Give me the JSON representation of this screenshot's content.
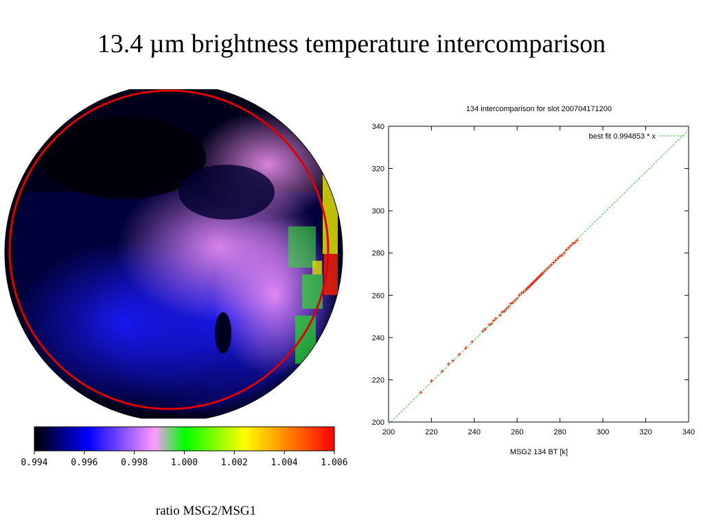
{
  "slide": {
    "title": "13.4 µm brightness temperature intercomparison",
    "caption": "ratio MSG2/MSG1"
  },
  "colorbar": {
    "ticks": [
      "0.994",
      "0.996",
      "0.998",
      "1.000",
      "1.002",
      "1.004",
      "1.006"
    ],
    "stops": [
      "#000000",
      "#0000ff",
      "#ff99ff",
      "#00ff00",
      "#ffff00",
      "#ff0000"
    ]
  },
  "colors": {
    "ring": "#e00000",
    "fit_line": "#33cc33",
    "points": "#e02000"
  },
  "chart_data": {
    "type": "scatter",
    "title": "134 intercomparison for slot 200704171200",
    "xlabel": "MSG2 134 BT [k]",
    "ylabel": "",
    "xlim": [
      200,
      340
    ],
    "ylim": [
      200,
      340
    ],
    "xticks": [
      200,
      220,
      240,
      260,
      280,
      300,
      320,
      340
    ],
    "yticks": [
      200,
      220,
      240,
      260,
      280,
      300,
      320,
      340
    ],
    "grid": false,
    "legend_position": "top-right",
    "series": [
      {
        "name": "best fit 0.994853 * x",
        "kind": "line",
        "slope": 0.994853
      }
    ],
    "points": [
      [
        215,
        214
      ],
      [
        220,
        219.5
      ],
      [
        225,
        224
      ],
      [
        228,
        227.5
      ],
      [
        230,
        229
      ],
      [
        233,
        232
      ],
      [
        236,
        235
      ],
      [
        239,
        238
      ],
      [
        244,
        243
      ],
      [
        245,
        244
      ],
      [
        247,
        246
      ],
      [
        248,
        246.5
      ],
      [
        249,
        248
      ],
      [
        250,
        249
      ],
      [
        252,
        250.5
      ],
      [
        253,
        252
      ],
      [
        254,
        252.5
      ],
      [
        255,
        253.5
      ],
      [
        256,
        254.5
      ],
      [
        257,
        256
      ],
      [
        258,
        256.5
      ],
      [
        259,
        257.5
      ],
      [
        260,
        258.5
      ],
      [
        261,
        260
      ],
      [
        262,
        261
      ],
      [
        263,
        261.5
      ],
      [
        264,
        262.5
      ],
      [
        264.5,
        263
      ],
      [
        265,
        263.5
      ],
      [
        265.5,
        264
      ],
      [
        266,
        264.5
      ],
      [
        266.5,
        265
      ],
      [
        267,
        265.5
      ],
      [
        267.5,
        266
      ],
      [
        268,
        266.5
      ],
      [
        268.5,
        267
      ],
      [
        269,
        267.5
      ],
      [
        269.5,
        268
      ],
      [
        270,
        268.5
      ],
      [
        270.5,
        269
      ],
      [
        271,
        269.5
      ],
      [
        271.5,
        270
      ],
      [
        272,
        270.5
      ],
      [
        273,
        271.5
      ],
      [
        274,
        272.5
      ],
      [
        275,
        273.5
      ],
      [
        276,
        274.5
      ],
      [
        277,
        275.5
      ],
      [
        278,
        276.5
      ],
      [
        279,
        277.5
      ],
      [
        280,
        278.5
      ],
      [
        281,
        279
      ],
      [
        282,
        280
      ],
      [
        283,
        281.5
      ],
      [
        284,
        282.5
      ],
      [
        285,
        283.5
      ],
      [
        286,
        284.5
      ],
      [
        287,
        285
      ],
      [
        288,
        286
      ]
    ]
  }
}
